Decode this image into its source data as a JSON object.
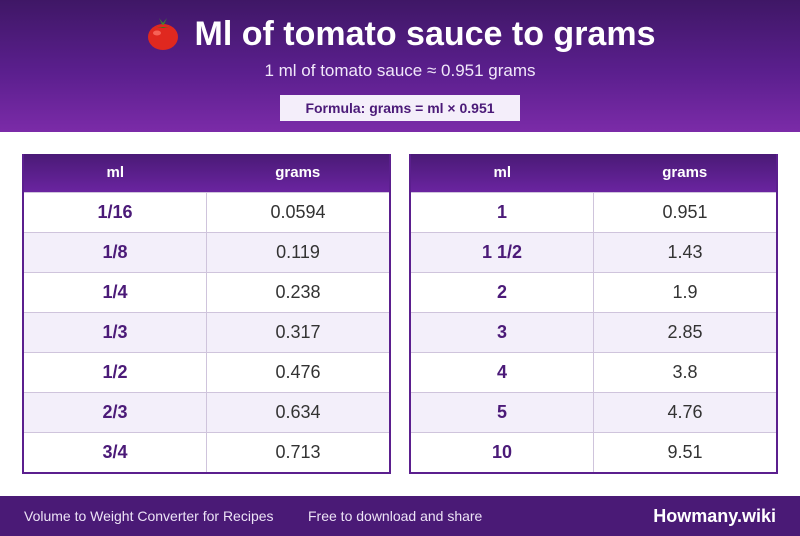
{
  "header": {
    "title": "Ml of tomato sauce to grams",
    "icon": "tomato-icon",
    "subtitle": "1 ml of tomato sauce ≈ 0.951 grams",
    "formula": "Formula: grams = ml × 0.951"
  },
  "tables": [
    {
      "col1": "ml",
      "col2": "grams",
      "rows": [
        {
          "ml": "1/16",
          "grams": "0.0594"
        },
        {
          "ml": "1/8",
          "grams": "0.119"
        },
        {
          "ml": "1/4",
          "grams": "0.238"
        },
        {
          "ml": "1/3",
          "grams": "0.317"
        },
        {
          "ml": "1/2",
          "grams": "0.476"
        },
        {
          "ml": "2/3",
          "grams": "0.634"
        },
        {
          "ml": "3/4",
          "grams": "0.713"
        }
      ]
    },
    {
      "col1": "ml",
      "col2": "grams",
      "rows": [
        {
          "ml": "1",
          "grams": "0.951"
        },
        {
          "ml": "1 1/2",
          "grams": "1.43"
        },
        {
          "ml": "2",
          "grams": "1.9"
        },
        {
          "ml": "3",
          "grams": "2.85"
        },
        {
          "ml": "4",
          "grams": "3.8"
        },
        {
          "ml": "5",
          "grams": "4.76"
        },
        {
          "ml": "10",
          "grams": "9.51"
        }
      ]
    }
  ],
  "footer": {
    "left": "Volume to Weight Converter for Recipes",
    "middle": "Free to download and share",
    "brand": "Howmany.wiki"
  },
  "colors": {
    "header_start": "#3f1766",
    "header_end": "#7b2ba8",
    "accent": "#4b1a78",
    "row_alt": "#f3effa",
    "footer": "#4a1a76"
  }
}
